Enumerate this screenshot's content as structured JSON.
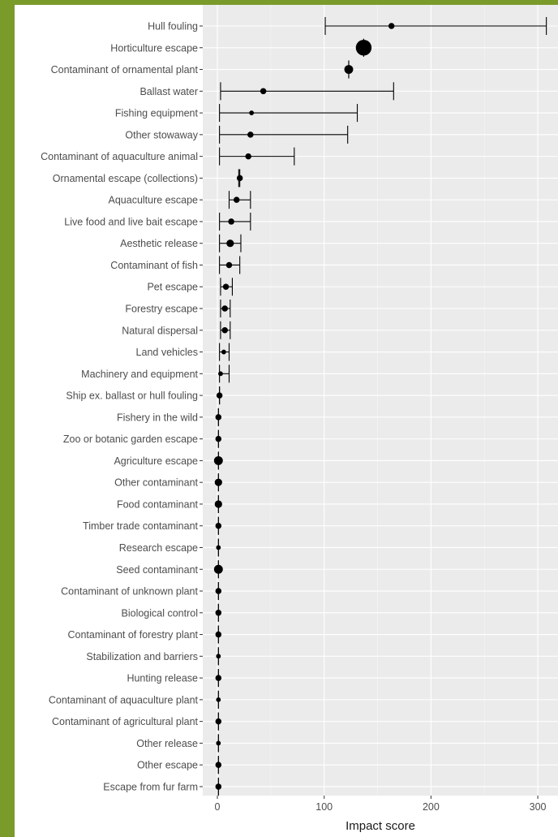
{
  "chart_data": {
    "type": "scatter",
    "title": "",
    "xlabel": "Impact score",
    "ylabel": "",
    "xlim": [
      -12,
      318
    ],
    "x_ticks": [
      0,
      100,
      200,
      300
    ],
    "grid": true,
    "legend": "none",
    "colors": {
      "panel": "#ebebeb",
      "grid_major": "#ffffff",
      "grid_minor": "#f4f4f4",
      "points": "#000000",
      "frame": "#7a9a2a"
    },
    "categories": [
      "Hull fouling",
      "Horticulture escape",
      "Contaminant of ornamental plant",
      "Ballast water",
      "Fishing equipment",
      "Other stowaway",
      "Contaminant of aquaculture animal",
      "Ornamental escape (collections)",
      "Aquaculture escape",
      "Live food and live bait escape",
      "Aesthetic release",
      "Contaminant of fish",
      "Pet escape",
      "Forestry escape",
      "Natural dispersal",
      "Land vehicles",
      "Machinery and equipment",
      "Ship ex. ballast or hull fouling",
      "Fishery in the wild",
      "Zoo or botanic garden escape",
      "Agriculture escape",
      "Other contaminant",
      "Food contaminant",
      "Timber trade contaminant",
      "Research escape",
      "Seed contaminant",
      "Contaminant of unknown plant",
      "Biological control",
      "Contaminant of forestry plant",
      "Stabilization and barriers",
      "Hunting release",
      "Contaminant of aquaculture plant",
      "Contaminant of agricultural plant",
      "Other release",
      "Other escape",
      "Escape from fur farm"
    ],
    "values": [
      163,
      137,
      123,
      43,
      32,
      31,
      29,
      21,
      18,
      13,
      12,
      11,
      8,
      7,
      7,
      6,
      3,
      2,
      1,
      1,
      1,
      1,
      1,
      1,
      1,
      1,
      1,
      1,
      1,
      1,
      1,
      1,
      1,
      1,
      1,
      1
    ],
    "lower": [
      101,
      137,
      123,
      3,
      2,
      2,
      2,
      20,
      11,
      2,
      2,
      2,
      3,
      3,
      3,
      2,
      2,
      2,
      1,
      1,
      1,
      1,
      1,
      1,
      1,
      1,
      1,
      1,
      1,
      1,
      1,
      1,
      1,
      1,
      1,
      1
    ],
    "upper": [
      308,
      137,
      123,
      165,
      131,
      122,
      72,
      21,
      31,
      31,
      22,
      21,
      14,
      12,
      12,
      11,
      11,
      2,
      1,
      1,
      1,
      1,
      1,
      1,
      1,
      1,
      1,
      1,
      1,
      1,
      1,
      1,
      1,
      1,
      1,
      1
    ],
    "point_weight": [
      3,
      10,
      5,
      3,
      2,
      3,
      3,
      3,
      3,
      3,
      4,
      3,
      3,
      3,
      3,
      2,
      2,
      3,
      3,
      3,
      5,
      4,
      4,
      3,
      2,
      5,
      3,
      3,
      3,
      2,
      3,
      2,
      3,
      2,
      3,
      3
    ]
  }
}
